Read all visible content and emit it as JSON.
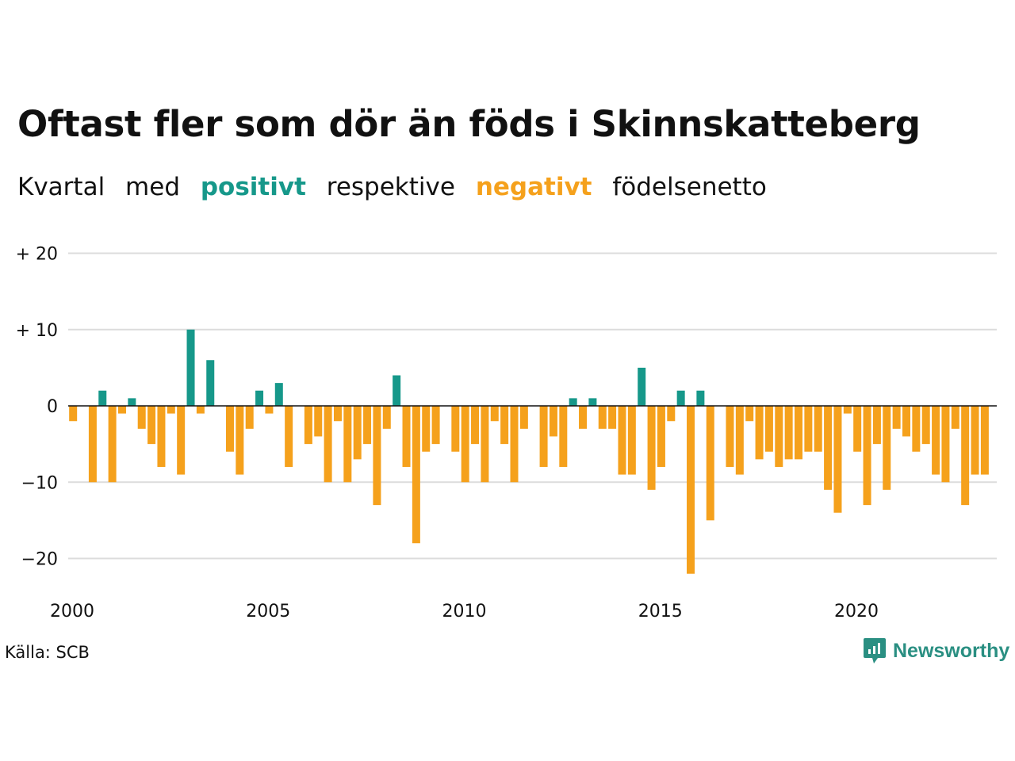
{
  "title": "Oftast fler som dör än föds i Skinnskatteberg",
  "subtitle": {
    "w1": "Kvartal",
    "w2": "med",
    "positive": "positivt",
    "w3": "respektive",
    "negative": "negativt",
    "w4": "födelsenetto"
  },
  "source": "Källa: SCB",
  "brand": "Newsworthy",
  "colors": {
    "positive": "#16988a",
    "negative": "#f5a11c",
    "grid": "#dcdcdc",
    "axis": "#111111"
  },
  "chart_data": {
    "type": "bar",
    "x_start": "2000 Q1",
    "x_step": "quarter",
    "values": [
      -2,
      0,
      -10,
      2,
      -10,
      -1,
      1,
      -3,
      -5,
      -8,
      -1,
      -9,
      10,
      -1,
      6,
      0,
      -6,
      -9,
      -3,
      2,
      -1,
      3,
      -8,
      0,
      -5,
      -4,
      -10,
      -2,
      -10,
      -7,
      -5,
      -13,
      -3,
      4,
      -8,
      -18,
      -6,
      -5,
      0,
      -6,
      -10,
      -5,
      -10,
      -2,
      -5,
      -10,
      -3,
      0,
      -8,
      -4,
      -8,
      1,
      -3,
      1,
      -3,
      -3,
      -9,
      -9,
      5,
      -11,
      -8,
      -2,
      2,
      -22,
      2,
      -15,
      0,
      -8,
      -9,
      -2,
      -7,
      -6,
      -8,
      -7,
      -7,
      -6,
      -6,
      -11,
      -14,
      -1,
      -6,
      -13,
      -5,
      -11,
      -3,
      -4,
      -6,
      -5,
      -9,
      -10,
      -3,
      -13,
      -9,
      -9
    ],
    "x_ticks": [
      "2000",
      "2005",
      "2010",
      "2015",
      "2020"
    ],
    "y_ticks": [
      {
        "value": 20,
        "label": "+ 20"
      },
      {
        "value": 10,
        "label": "+ 10"
      },
      {
        "value": 0,
        "label": "0"
      },
      {
        "value": -10,
        "label": "−10"
      },
      {
        "value": -20,
        "label": "−20"
      }
    ],
    "ylim": [
      -24,
      20
    ],
    "grid": true
  }
}
